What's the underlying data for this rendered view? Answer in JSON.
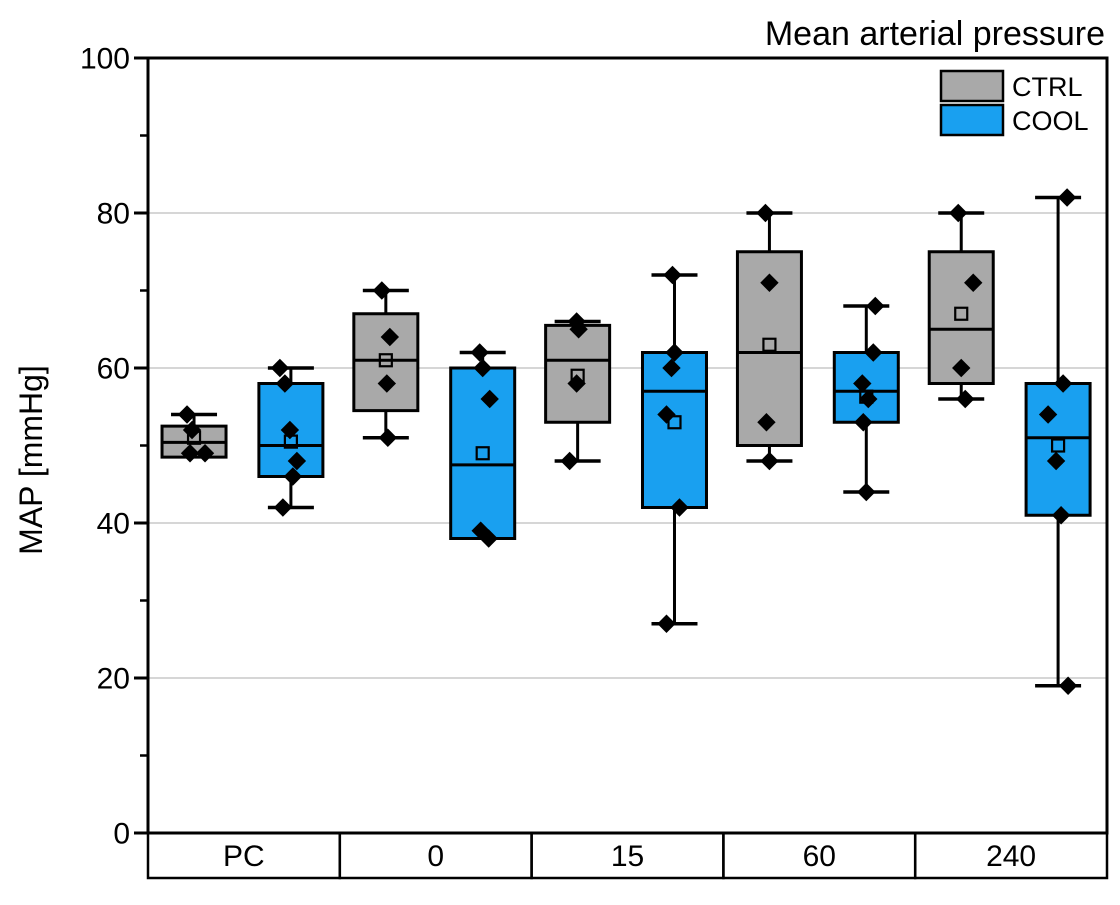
{
  "title": "Mean arterial pressure",
  "chart_data": {
    "type": "box",
    "title": "Mean arterial pressure",
    "ylabel": "MAP [mmHg]",
    "ylim": [
      0,
      100
    ],
    "y_major_ticks": [
      0,
      20,
      40,
      60,
      80,
      100
    ],
    "y_minor_ticks": [
      10,
      30,
      50,
      70,
      90
    ],
    "gridlines_at": [
      20,
      40,
      60,
      80
    ],
    "grid": "horizontal-major",
    "categories": [
      "PC",
      "0",
      "15",
      "60",
      "240"
    ],
    "legend_position": "top-right-inside",
    "legend": [
      {
        "name": "CTRL",
        "color": "#a9a9a9"
      },
      {
        "name": "COOL",
        "color": "#19a0f0"
      }
    ],
    "series": [
      {
        "name": "CTRL",
        "color": "#a9a9a9",
        "boxes": [
          {
            "category": "PC",
            "q1": 48.5,
            "median": 50.4,
            "q3": 52.5,
            "mean": 51,
            "whisker_low": null,
            "whisker_high": 54,
            "points": [
              {
                "v": 54,
                "dx": -7
              },
              {
                "v": 52,
                "dx": -2
              },
              {
                "v": 49,
                "dx": -4
              },
              {
                "v": 49,
                "dx": 11
              }
            ]
          },
          {
            "category": "0",
            "q1": 54.5,
            "median": 61,
            "q3": 67,
            "mean": 61,
            "whisker_low": 51,
            "whisker_high": 70,
            "points": [
              {
                "v": 70,
                "dx": -4
              },
              {
                "v": 64,
                "dx": 4
              },
              {
                "v": 58,
                "dx": 1
              },
              {
                "v": 51,
                "dx": 2
              }
            ]
          },
          {
            "category": "15",
            "q1": 53,
            "median": 61,
            "q3": 65.5,
            "mean": 59,
            "whisker_low": 48,
            "whisker_high": 66,
            "points": [
              {
                "v": 66,
                "dx": -1
              },
              {
                "v": 65,
                "dx": 1
              },
              {
                "v": 58,
                "dx": -1
              },
              {
                "v": 48,
                "dx": -8
              }
            ]
          },
          {
            "category": "60",
            "q1": 50,
            "median": 62,
            "q3": 75,
            "mean": 63,
            "whisker_low": 48,
            "whisker_high": 80,
            "points": [
              {
                "v": 80,
                "dx": -4
              },
              {
                "v": 71,
                "dx": 0
              },
              {
                "v": 53,
                "dx": -3
              },
              {
                "v": 48,
                "dx": 0
              }
            ]
          },
          {
            "category": "240",
            "q1": 58,
            "median": 65,
            "q3": 75,
            "mean": 67,
            "whisker_low": 56,
            "whisker_high": 80,
            "points": [
              {
                "v": 80,
                "dx": -3
              },
              {
                "v": 71,
                "dx": 12
              },
              {
                "v": 60,
                "dx": 0
              },
              {
                "v": 56,
                "dx": 4
              }
            ]
          }
        ]
      },
      {
        "name": "COOL",
        "color": "#19a0f0",
        "boxes": [
          {
            "category": "PC",
            "q1": 46,
            "median": 50,
            "q3": 58,
            "mean": 50.5,
            "whisker_low": 42,
            "whisker_high": 60,
            "points": [
              {
                "v": 60,
                "dx": -11
              },
              {
                "v": 58,
                "dx": -6
              },
              {
                "v": 52,
                "dx": -1
              },
              {
                "v": 48,
                "dx": 6
              },
              {
                "v": 46,
                "dx": 2
              },
              {
                "v": 42,
                "dx": -8
              }
            ]
          },
          {
            "category": "0",
            "q1": 38,
            "median": 47.5,
            "q3": 60,
            "mean": 49,
            "whisker_low": null,
            "whisker_high": 62,
            "points": [
              {
                "v": 62,
                "dx": -3
              },
              {
                "v": 60,
                "dx": 0
              },
              {
                "v": 56,
                "dx": 7
              },
              {
                "v": 39,
                "dx": -2
              },
              {
                "v": 38,
                "dx": 6
              }
            ]
          },
          {
            "category": "15",
            "q1": 42,
            "median": 57,
            "q3": 62,
            "mean": 53,
            "whisker_low": 27,
            "whisker_high": 72,
            "points": [
              {
                "v": 72,
                "dx": -2
              },
              {
                "v": 62,
                "dx": 0
              },
              {
                "v": 60,
                "dx": -3
              },
              {
                "v": 54,
                "dx": -8
              },
              {
                "v": 42,
                "dx": 5
              },
              {
                "v": 27,
                "dx": -8
              }
            ]
          },
          {
            "category": "60",
            "q1": 53,
            "median": 57,
            "q3": 62,
            "mean": 56.3,
            "whisker_low": 44,
            "whisker_high": 68,
            "points": [
              {
                "v": 68,
                "dx": 9
              },
              {
                "v": 62,
                "dx": 7
              },
              {
                "v": 58,
                "dx": -4
              },
              {
                "v": 56,
                "dx": 2
              },
              {
                "v": 53,
                "dx": -3
              },
              {
                "v": 44,
                "dx": 0
              }
            ]
          },
          {
            "category": "240",
            "q1": 41,
            "median": 51,
            "q3": 58,
            "mean": 50,
            "whisker_low": 19,
            "whisker_high": 82,
            "points": [
              {
                "v": 82,
                "dx": 9
              },
              {
                "v": 58,
                "dx": 5
              },
              {
                "v": 54,
                "dx": -10
              },
              {
                "v": 48,
                "dx": -2
              },
              {
                "v": 41,
                "dx": 3
              },
              {
                "v": 19,
                "dx": 10
              }
            ]
          }
        ]
      }
    ],
    "colors": {
      "gridline": "#c8c8c8",
      "frame": "#000000",
      "point": "#000000"
    }
  }
}
